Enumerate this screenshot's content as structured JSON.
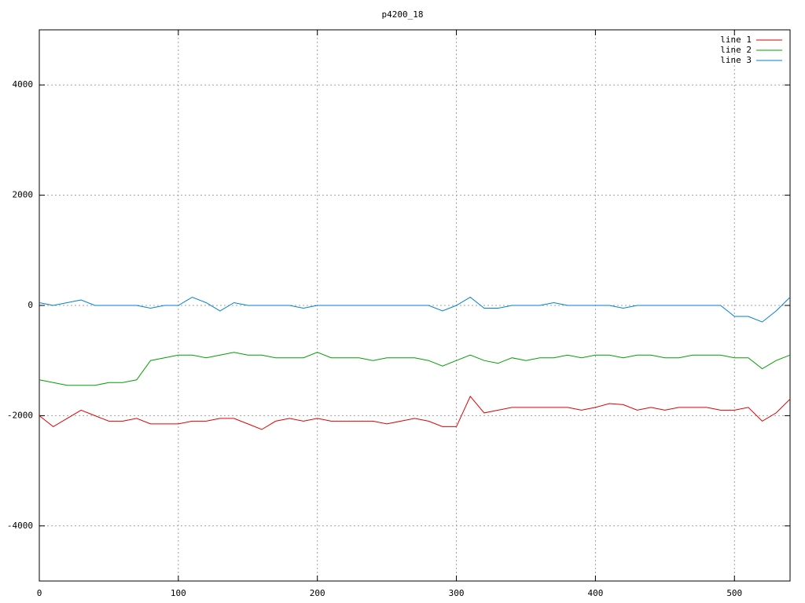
{
  "chart_data": {
    "type": "line",
    "title": "p4200_18",
    "x": [
      0,
      10,
      20,
      30,
      40,
      50,
      60,
      70,
      80,
      90,
      100,
      110,
      120,
      130,
      140,
      150,
      160,
      170,
      180,
      190,
      200,
      210,
      220,
      230,
      240,
      250,
      260,
      270,
      280,
      290,
      300,
      310,
      320,
      330,
      340,
      350,
      360,
      370,
      380,
      390,
      400,
      410,
      420,
      430,
      440,
      450,
      460,
      470,
      480,
      490,
      500,
      510,
      520,
      530,
      540
    ],
    "series": [
      {
        "name": "line 1",
        "color": "#e00000",
        "values": [
          -2000,
          -2200,
          -2050,
          -1900,
          -2000,
          -2100,
          -2100,
          -2050,
          -2150,
          -2150,
          -2150,
          -2100,
          -2100,
          -2050,
          -2050,
          -2150,
          -2250,
          -2100,
          -2050,
          -2100,
          -2050,
          -2100,
          -2100,
          -2100,
          -2100,
          -2150,
          -2100,
          -2050,
          -2100,
          -2200,
          -2200,
          -1650,
          -1950,
          -1900,
          -1850,
          -1850,
          -1850,
          -1850,
          -1850,
          -1900,
          -1850,
          -1780,
          -1800,
          -1900,
          -1850,
          -1900,
          -1850,
          -1850,
          -1850,
          -1900,
          -1900,
          -1850,
          -2100,
          -1950,
          -1700
        ]
      },
      {
        "name": "line 2",
        "color": "#00a000",
        "values": [
          -1350,
          -1400,
          -1450,
          -1450,
          -1450,
          -1400,
          -1400,
          -1350,
          -1000,
          -950,
          -900,
          -900,
          -950,
          -900,
          -850,
          -900,
          -900,
          -950,
          -950,
          -950,
          -850,
          -950,
          -950,
          -950,
          -1000,
          -950,
          -950,
          -950,
          -1000,
          -1100,
          -1000,
          -900,
          -1000,
          -1050,
          -950,
          -1000,
          -950,
          -950,
          -900,
          -950,
          -900,
          -900,
          -950,
          -900,
          -900,
          -950,
          -950,
          -900,
          -900,
          -900,
          -950,
          -950,
          -1150,
          -1000,
          -900
        ]
      },
      {
        "name": "line 3",
        "color": "#0080d0",
        "values": [
          50,
          0,
          50,
          100,
          0,
          0,
          0,
          0,
          -50,
          0,
          0,
          150,
          50,
          -100,
          50,
          0,
          0,
          0,
          0,
          -50,
          0,
          0,
          0,
          0,
          0,
          0,
          0,
          0,
          0,
          -100,
          0,
          150,
          -50,
          -50,
          0,
          0,
          0,
          50,
          0,
          0,
          0,
          0,
          -50,
          0,
          0,
          0,
          0,
          0,
          0,
          0,
          -200,
          -200,
          -300,
          -100,
          150
        ]
      }
    ],
    "xlim": [
      0,
      540
    ],
    "ylim": [
      -5000,
      5000
    ],
    "xticks": [
      0,
      100,
      200,
      300,
      400,
      500
    ],
    "yticks": [
      -4000,
      -2000,
      0,
      2000,
      4000
    ],
    "grid": true,
    "legend": "top-right"
  }
}
